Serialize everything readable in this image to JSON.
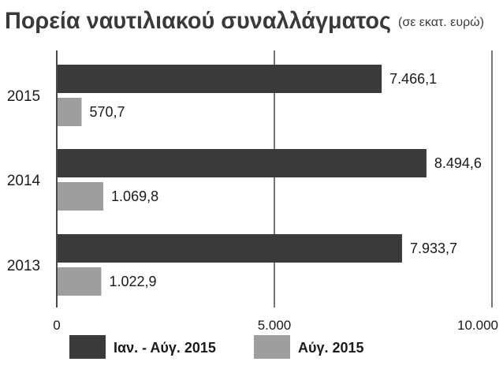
{
  "colors": {
    "series_dark": "#3a3a3a",
    "series_light": "#9e9e9e",
    "background": "#ffffff",
    "grid": "#1a1a1a",
    "text": "#1a1a1a"
  },
  "chart_data": {
    "type": "bar",
    "orientation": "horizontal",
    "title": "Πορεία ναυτιλιακού συναλλάγματος",
    "subtitle": "(σε εκατ. ευρώ)",
    "categories": [
      "2015",
      "2014",
      "2013"
    ],
    "series": [
      {
        "name": "Ιαν. - Αύγ. 2015",
        "color": "#3a3a3a",
        "values": [
          7466.1,
          8494.6,
          7933.7
        ],
        "labels": [
          "7.466,1",
          "8.494,6",
          "7.933,7"
        ]
      },
      {
        "name": "Αύγ. 2015",
        "color": "#9e9e9e",
        "values": [
          570.7,
          1069.8,
          1022.9
        ],
        "labels": [
          "570,7",
          "1.069,8",
          "1.022,9"
        ]
      }
    ],
    "xlim": [
      0,
      10000
    ],
    "xticks": [
      0,
      5000,
      10000
    ],
    "xtick_labels": [
      "0",
      "5.000",
      "10.000"
    ],
    "grid": true,
    "legend_position": "bottom"
  }
}
